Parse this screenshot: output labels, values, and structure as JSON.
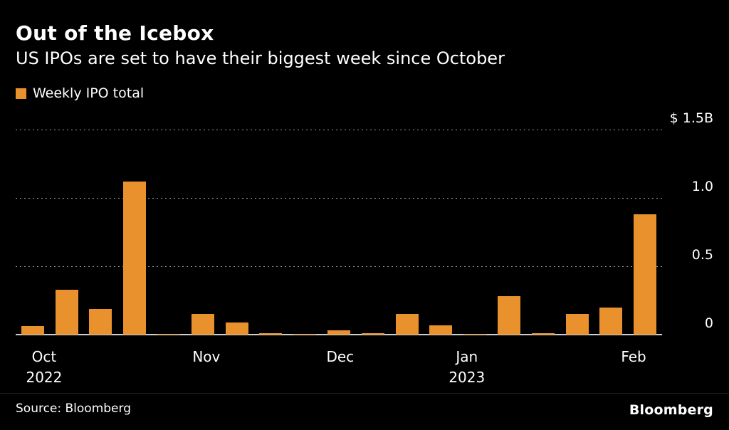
{
  "chart_data": {
    "type": "bar",
    "title": "Out of the Icebox",
    "subtitle": "US IPOs are set to have their biggest week since October",
    "legend": [
      "Weekly IPO total"
    ],
    "bar_color": "#E8912D",
    "y_unit": "$B",
    "ylim": [
      0,
      1.5
    ],
    "grid": "dotted-horizontal",
    "legend_position": "top-left",
    "y_ticks": [
      {
        "value": 1.5,
        "label": "$ 1.5B"
      },
      {
        "value": 1.0,
        "label": "1.0"
      },
      {
        "value": 0.5,
        "label": "0.5"
      },
      {
        "value": 0,
        "label": "0"
      }
    ],
    "x_description": "Weekly IPO totals, Oct 2022 - Feb 2023",
    "values": [
      0.06,
      0.33,
      0.19,
      1.12,
      0.005,
      0.15,
      0.09,
      0.008,
      0.005,
      0.03,
      0.008,
      0.15,
      0.07,
      0.005,
      0.28,
      0.008,
      0.15,
      0.2,
      0.88
    ],
    "x_ticks": [
      {
        "label": "Oct",
        "year": "2022",
        "pos": 0.044
      },
      {
        "label": "Nov",
        "year": "",
        "pos": 0.295
      },
      {
        "label": "Dec",
        "year": "",
        "pos": 0.502
      },
      {
        "label": "Jan",
        "year": "2023",
        "pos": 0.698
      },
      {
        "label": "Feb",
        "year": "",
        "pos": 0.956
      }
    ]
  },
  "footer": {
    "source": "Source: Bloomberg",
    "logo": "Bloomberg"
  }
}
